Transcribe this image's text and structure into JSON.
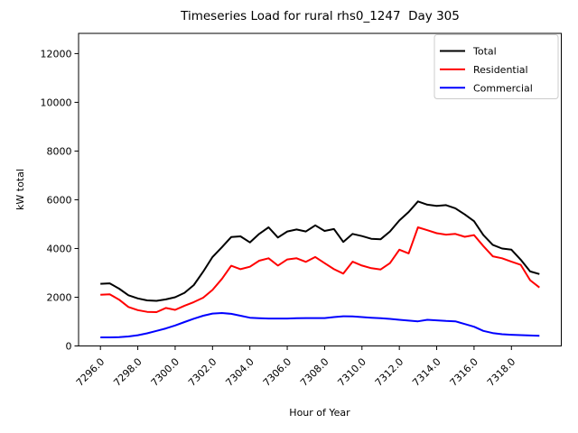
{
  "title": "Timeseries Load for rural rhs0_1247  Day 305",
  "chart_data": {
    "type": "line",
    "title": "Timeseries Load for rural rhs0_1247  Day 305",
    "xlabel": "Hour of Year",
    "ylabel": "kW total",
    "grid": false,
    "legend_position": "upper right",
    "xlim": [
      7294.83,
      7320.67
    ],
    "ylim": [
      0,
      12830
    ],
    "x_start": 7296.0,
    "x_step": 0.5,
    "xticks": {
      "values": [
        7296,
        7298,
        7300,
        7302,
        7304,
        7306,
        7308,
        7310,
        7312,
        7314,
        7316,
        7318
      ],
      "labels": [
        "7296.0",
        "7298.0",
        "7300.0",
        "7302.0",
        "7304.0",
        "7306.0",
        "7308.0",
        "7310.0",
        "7312.0",
        "7314.0",
        "7316.0",
        "7318.0"
      ]
    },
    "yticks": {
      "values": [
        0,
        2000,
        4000,
        6000,
        8000,
        10000,
        12000
      ],
      "labels": [
        "0",
        "2000",
        "4000",
        "6000",
        "8000",
        "10000",
        "12000"
      ]
    },
    "series": [
      {
        "name": "Total",
        "color": "#000000",
        "values": [
          2550,
          2570,
          2350,
          2080,
          1950,
          1870,
          1850,
          1910,
          2000,
          2180,
          2500,
          3050,
          3650,
          4050,
          4470,
          4500,
          4250,
          4600,
          4870,
          4450,
          4700,
          4780,
          4700,
          4950,
          4720,
          4800,
          4270,
          4600,
          4510,
          4400,
          4380,
          4700,
          5150,
          5500,
          5930,
          5800,
          5750,
          5780,
          5650,
          5400,
          5120,
          4550,
          4150,
          4000,
          3950,
          3540,
          3060,
          2950
        ]
      },
      {
        "name": "Residential",
        "color": "#ff0000",
        "values": [
          2100,
          2120,
          1900,
          1600,
          1470,
          1400,
          1390,
          1560,
          1480,
          1650,
          1800,
          1980,
          2300,
          2750,
          3290,
          3150,
          3250,
          3500,
          3600,
          3300,
          3550,
          3600,
          3450,
          3650,
          3400,
          3150,
          2970,
          3460,
          3300,
          3190,
          3140,
          3400,
          3950,
          3800,
          4870,
          4750,
          4630,
          4570,
          4600,
          4480,
          4550,
          4100,
          3680,
          3600,
          3460,
          3330,
          2700,
          2400
        ]
      },
      {
        "name": "Commercial",
        "color": "#0000ff",
        "values": [
          350,
          350,
          360,
          390,
          440,
          520,
          620,
          720,
          840,
          980,
          1120,
          1240,
          1330,
          1350,
          1320,
          1240,
          1160,
          1140,
          1125,
          1125,
          1125,
          1135,
          1145,
          1145,
          1145,
          1185,
          1220,
          1210,
          1185,
          1160,
          1135,
          1110,
          1075,
          1040,
          1010,
          1075,
          1050,
          1025,
          1010,
          900,
          790,
          620,
          530,
          480,
          460,
          445,
          430,
          420
        ]
      }
    ],
    "frame_color": "#000000",
    "legend_border_color": "#cccccc"
  }
}
